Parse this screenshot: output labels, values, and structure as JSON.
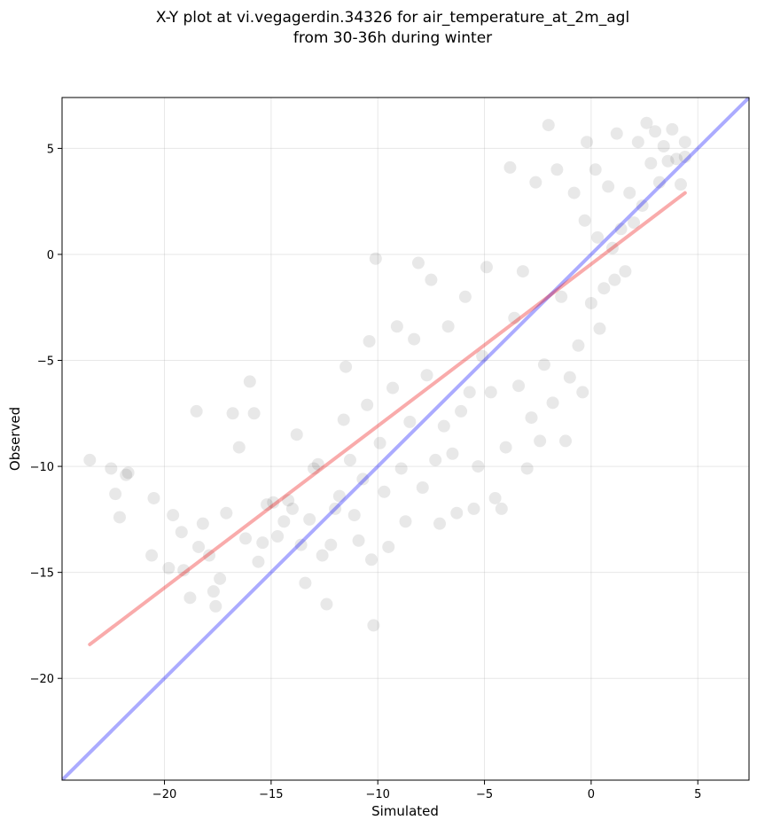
{
  "chart_data": {
    "type": "scatter",
    "title_line1": "X-Y plot at vi.vegagerdin.34326 for air_temperature_at_2m_agl",
    "title_line2": "from 30-36h during winter",
    "xlabel": "Simulated",
    "ylabel": "Observed",
    "xlim": [
      -24.8,
      7.4
    ],
    "ylim": [
      -24.8,
      7.4
    ],
    "xticks": [
      -20,
      -15,
      -10,
      -5,
      0,
      5
    ],
    "yticks": [
      -20,
      -15,
      -10,
      -5,
      0,
      5
    ],
    "xtick_labels": [
      "−20",
      "−15",
      "−10",
      "−5",
      "0",
      "5"
    ],
    "ytick_labels": [
      "−20",
      "−15",
      "−10",
      "−5",
      "0",
      "5"
    ],
    "grid": true,
    "point_color": "#000000",
    "point_alpha": 0.09,
    "identity_line": {
      "x": [
        -24.8,
        7.4
      ],
      "y": [
        -24.8,
        7.4
      ],
      "color": "#0000ff",
      "alpha": 0.33
    },
    "regression_line": {
      "x": [
        -23.5,
        4.4
      ],
      "y": [
        -18.4,
        2.9
      ],
      "color": "#ee0000",
      "alpha": 0.33
    },
    "points": [
      [
        -23.5,
        -9.7
      ],
      [
        -22.5,
        -10.1
      ],
      [
        -22.3,
        -11.3
      ],
      [
        -21.8,
        -10.4
      ],
      [
        -22.1,
        -12.4
      ],
      [
        -21.7,
        -10.3
      ],
      [
        -20.5,
        -11.5
      ],
      [
        -20.6,
        -14.2
      ],
      [
        -19.8,
        -14.8
      ],
      [
        -19.6,
        -12.3
      ],
      [
        -19.2,
        -13.1
      ],
      [
        -19.1,
        -14.9
      ],
      [
        -18.8,
        -16.2
      ],
      [
        -18.4,
        -13.8
      ],
      [
        -18.2,
        -12.7
      ],
      [
        -17.9,
        -14.2
      ],
      [
        -17.7,
        -15.9
      ],
      [
        -17.6,
        -16.6
      ],
      [
        -17.4,
        -15.3
      ],
      [
        -17.1,
        -12.2
      ],
      [
        -18.5,
        -7.4
      ],
      [
        -16.8,
        -7.5
      ],
      [
        -16.5,
        -9.1
      ],
      [
        -16.2,
        -13.4
      ],
      [
        -16.0,
        -6.0
      ],
      [
        -15.8,
        -7.5
      ],
      [
        -15.6,
        -14.5
      ],
      [
        -15.4,
        -13.6
      ],
      [
        -15.2,
        -11.8
      ],
      [
        -14.9,
        -11.7
      ],
      [
        -14.7,
        -13.3
      ],
      [
        -14.4,
        -12.6
      ],
      [
        -14.2,
        -11.6
      ],
      [
        -14.0,
        -12.0
      ],
      [
        -13.8,
        -8.5
      ],
      [
        -13.6,
        -13.7
      ],
      [
        -13.4,
        -15.5
      ],
      [
        -13.2,
        -12.5
      ],
      [
        -13.0,
        -10.1
      ],
      [
        -12.8,
        -9.9
      ],
      [
        -12.6,
        -14.2
      ],
      [
        -12.4,
        -16.5
      ],
      [
        -12.2,
        -13.7
      ],
      [
        -12.0,
        -12.0
      ],
      [
        -11.8,
        -11.4
      ],
      [
        -11.6,
        -7.8
      ],
      [
        -11.5,
        -5.3
      ],
      [
        -11.3,
        -9.7
      ],
      [
        -11.1,
        -12.3
      ],
      [
        -10.9,
        -13.5
      ],
      [
        -10.7,
        -10.6
      ],
      [
        -10.5,
        -7.1
      ],
      [
        -10.4,
        -4.1
      ],
      [
        -10.3,
        -14.4
      ],
      [
        -10.2,
        -17.5
      ],
      [
        -10.1,
        -0.2
      ],
      [
        -9.9,
        -8.9
      ],
      [
        -9.7,
        -11.2
      ],
      [
        -9.5,
        -13.8
      ],
      [
        -9.3,
        -6.3
      ],
      [
        -9.1,
        -3.4
      ],
      [
        -8.9,
        -10.1
      ],
      [
        -8.7,
        -12.6
      ],
      [
        -8.5,
        -7.9
      ],
      [
        -8.3,
        -4.0
      ],
      [
        -8.1,
        -0.4
      ],
      [
        -7.9,
        -11.0
      ],
      [
        -7.7,
        -5.7
      ],
      [
        -7.5,
        -1.2
      ],
      [
        -7.3,
        -9.7
      ],
      [
        -7.1,
        -12.7
      ],
      [
        -6.9,
        -8.1
      ],
      [
        -6.7,
        -3.4
      ],
      [
        -6.5,
        -9.4
      ],
      [
        -6.3,
        -12.2
      ],
      [
        -6.1,
        -7.4
      ],
      [
        -5.9,
        -2.0
      ],
      [
        -5.7,
        -6.5
      ],
      [
        -5.5,
        -12.0
      ],
      [
        -5.3,
        -10.0
      ],
      [
        -5.1,
        -4.8
      ],
      [
        -4.9,
        -0.6
      ],
      [
        -4.7,
        -6.5
      ],
      [
        -4.5,
        -11.5
      ],
      [
        -4.2,
        -12.0
      ],
      [
        -4.0,
        -9.1
      ],
      [
        -3.8,
        4.1
      ],
      [
        -3.6,
        -3.0
      ],
      [
        -3.4,
        -6.2
      ],
      [
        -3.2,
        -0.8
      ],
      [
        -3.0,
        -10.1
      ],
      [
        -2.8,
        -7.7
      ],
      [
        -2.6,
        3.4
      ],
      [
        -2.4,
        -8.8
      ],
      [
        -2.2,
        -5.2
      ],
      [
        -2.0,
        6.1
      ],
      [
        -1.8,
        -7.0
      ],
      [
        -1.6,
        4.0
      ],
      [
        -1.4,
        -2.0
      ],
      [
        -1.2,
        -8.8
      ],
      [
        -1.0,
        -5.8
      ],
      [
        -0.8,
        2.9
      ],
      [
        -0.6,
        -4.3
      ],
      [
        -0.4,
        -6.5
      ],
      [
        -0.2,
        5.3
      ],
      [
        0.0,
        -2.3
      ],
      [
        0.2,
        4.0
      ],
      [
        0.4,
        -3.5
      ],
      [
        0.6,
        -1.6
      ],
      [
        0.8,
        3.2
      ],
      [
        1.0,
        0.3
      ],
      [
        1.2,
        5.7
      ],
      [
        1.4,
        1.2
      ],
      [
        1.6,
        -0.8
      ],
      [
        1.8,
        2.9
      ],
      [
        2.0,
        1.5
      ],
      [
        2.2,
        5.3
      ],
      [
        2.4,
        2.3
      ],
      [
        2.6,
        6.2
      ],
      [
        2.8,
        4.3
      ],
      [
        3.0,
        5.8
      ],
      [
        3.2,
        3.4
      ],
      [
        3.4,
        5.1
      ],
      [
        3.6,
        4.4
      ],
      [
        3.8,
        5.9
      ],
      [
        4.0,
        4.5
      ],
      [
        4.2,
        3.3
      ],
      [
        4.4,
        5.3
      ],
      [
        4.4,
        4.6
      ],
      [
        1.1,
        -1.2
      ],
      [
        0.3,
        0.8
      ],
      [
        -0.3,
        1.6
      ]
    ]
  }
}
